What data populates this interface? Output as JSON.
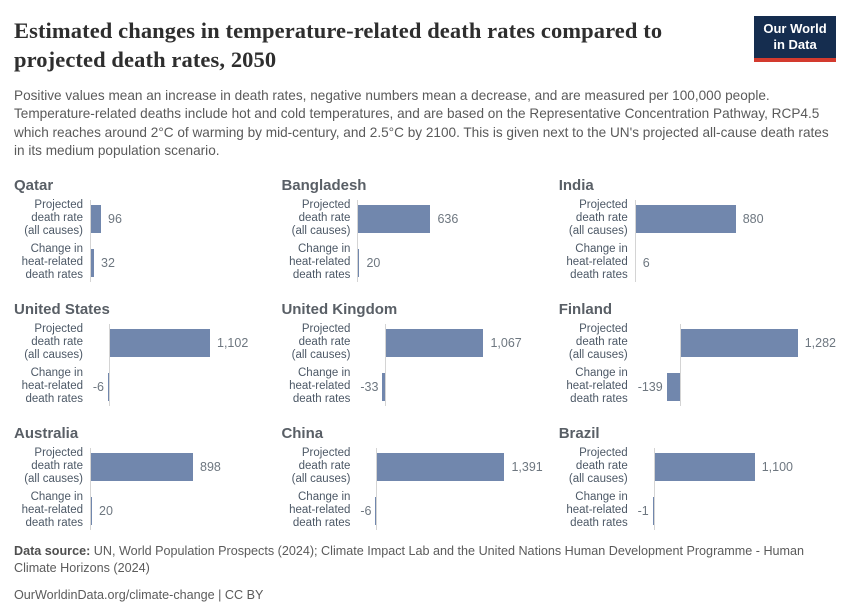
{
  "header": {
    "title": "Estimated changes in temperature-related death rates compared to projected death rates, 2050",
    "subtitle": "Positive values mean an increase in death rates, negative numbers mean a decrease, and are measured per 100,000 people. Temperature-related deaths include hot and cold temperatures, and are based on the Representative Concentration Pathway, RCP4.5 which reaches around 2°C of warming by mid-century, and 2.5°C by 2100. This is given next to the UN's projected all-cause death rates in its medium population scenario.",
    "logo": {
      "line1": "Our World",
      "line2": "in Data"
    }
  },
  "chart_data": {
    "type": "bar",
    "orientation": "horizontal",
    "unit": "per 100,000 people",
    "bar_color": "#7187ad",
    "axis_color": "#d4d4d4",
    "categories": [
      [
        "Projected",
        "death rate",
        "(all causes)"
      ],
      [
        "Change in",
        "heat-related",
        "death rates"
      ]
    ],
    "panels": [
      {
        "country": "Qatar",
        "projected_death_rate": 96,
        "change_heat_related": 32
      },
      {
        "country": "Bangladesh",
        "projected_death_rate": 636,
        "change_heat_related": 20
      },
      {
        "country": "India",
        "projected_death_rate": 880,
        "change_heat_related": 6
      },
      {
        "country": "United States",
        "projected_death_rate": 1102,
        "change_heat_related": -6
      },
      {
        "country": "United Kingdom",
        "projected_death_rate": 1067,
        "change_heat_related": -33
      },
      {
        "country": "Finland",
        "projected_death_rate": 1282,
        "change_heat_related": -139
      },
      {
        "country": "Australia",
        "projected_death_rate": 898,
        "change_heat_related": 20
      },
      {
        "country": "China",
        "projected_death_rate": 1391,
        "change_heat_related": -6
      },
      {
        "country": "Brazil",
        "projected_death_rate": 1100,
        "change_heat_related": -1
      }
    ]
  },
  "footer": {
    "source_label": "Data source:",
    "source_text": " UN, World Population Prospects (2024); Climate Impact Lab and the United Nations Human Development Programme - Human Climate Horizons (2024)",
    "cc_line": "OurWorldinData.org/climate-change | CC BY"
  }
}
